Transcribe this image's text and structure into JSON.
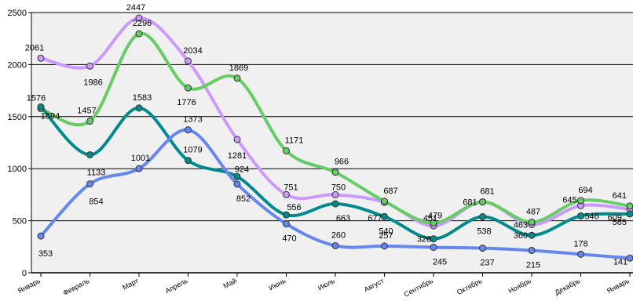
{
  "chart_data": {
    "type": "line",
    "title": "",
    "categories": [
      "Январь",
      "Февраль",
      "Март",
      "Апрель",
      "Май",
      "Июнь",
      "Июль",
      "Август",
      "Сентябрь",
      "Октябрь",
      "Ноябрь",
      "Декабрь",
      "Январь"
    ],
    "series": [
      {
        "color": "#cc99ff",
        "values": [
          2061,
          1986,
          2447,
          2034,
          1281,
          751,
          750,
          677,
          451,
          681,
          463,
          645,
          609
        ]
      },
      {
        "color": "#66cc66",
        "values": [
          1576,
          1457,
          2296,
          1776,
          1869,
          1171,
          966,
          687,
          479,
          681,
          487,
          694,
          641
        ]
      },
      {
        "color": "#008c8c",
        "values": [
          1594,
          1133,
          1583,
          1079,
          924,
          556,
          663,
          540,
          326,
          538,
          360,
          546,
          565
        ]
      },
      {
        "color": "#6688ee",
        "values": [
          353,
          854,
          1001,
          1373,
          852,
          470,
          260,
          257,
          245,
          237,
          215,
          178,
          141
        ]
      }
    ],
    "ylim": [
      0,
      2500
    ],
    "yticks": [
      "0",
      "500",
      "1000",
      "1500",
      "2000",
      "2500"
    ],
    "grid": true,
    "legend": "none"
  }
}
